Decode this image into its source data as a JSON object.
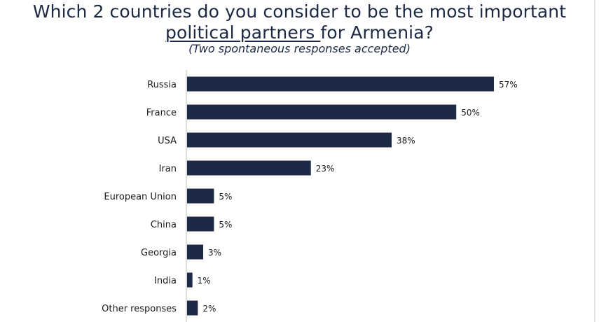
{
  "chart_data": {
    "type": "bar",
    "orientation": "horizontal",
    "title_line1": "Which 2 countries do you consider to be the most important",
    "title_line2_underlined": "political partners ",
    "title_line2_rest": "for Armenia?",
    "subtitle": "(Two spontaneous responses accepted)",
    "categories": [
      "Russia",
      "France",
      "USA",
      "Iran",
      "European Union",
      "China",
      "Georgia",
      "India",
      "Other responses"
    ],
    "values": [
      57,
      50,
      38,
      23,
      5,
      5,
      3,
      1,
      2
    ],
    "value_labels": [
      "57%",
      "50%",
      "38%",
      "23%",
      "5%",
      "5%",
      "3%",
      "1%",
      "2%"
    ],
    "unit": "%",
    "bar_color": "#1c2a45",
    "xlim": [
      0,
      57
    ],
    "grid": false,
    "legend": "none"
  }
}
